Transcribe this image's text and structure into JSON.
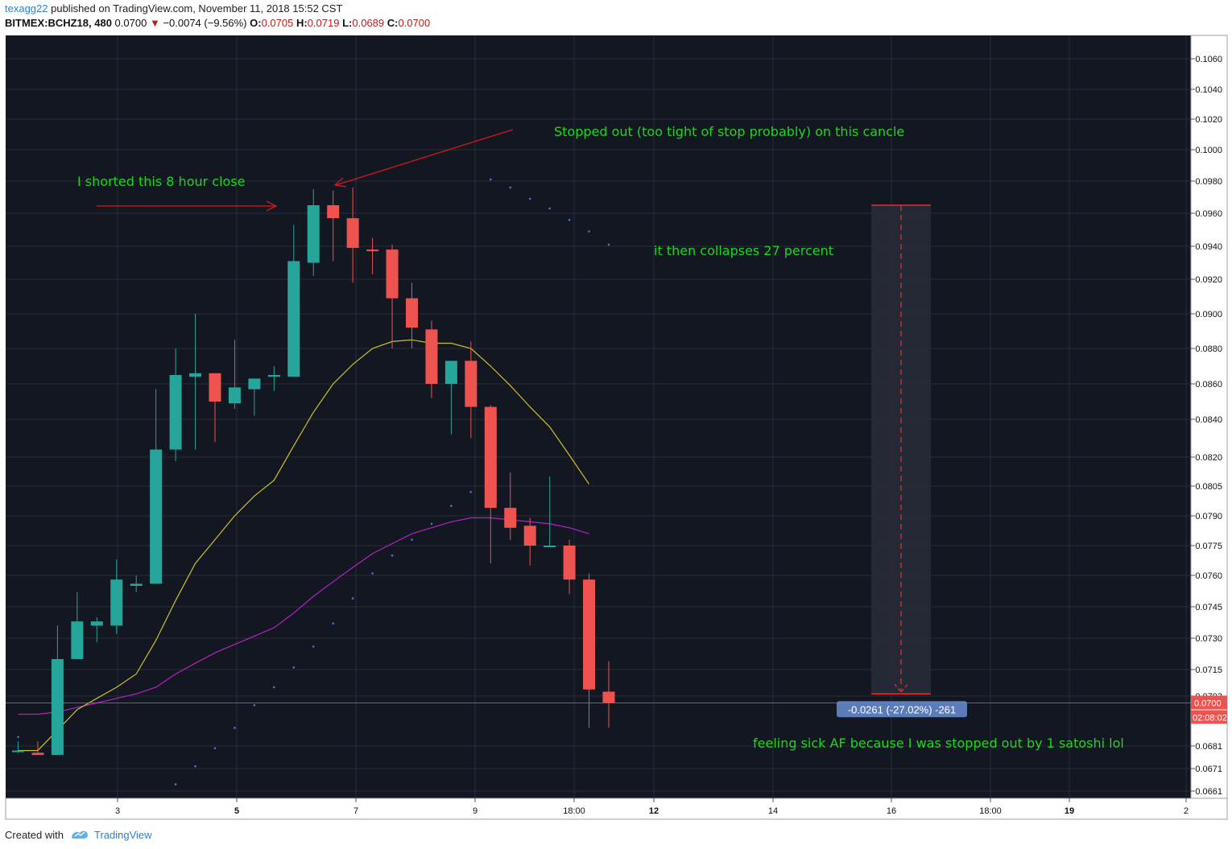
{
  "header": {
    "author": "texagg22",
    "published_text": " published on TradingView.com, November 11, 2018 15:52 CST",
    "symbol": "BITMEX:BCHZ18, 480",
    "last": "0.0700",
    "change": "−0.0074 (−9.56%)",
    "o_label": "O:",
    "o_val": "0.0705",
    "h_label": "H:",
    "h_val": "0.0719",
    "l_label": "L:",
    "l_val": "0.0689",
    "c_label": "C:",
    "c_val": "0.0700"
  },
  "footer": {
    "created_with": "Created with",
    "brand": "TradingView"
  },
  "colors": {
    "background": "#131722",
    "grid": "#2a2e39",
    "up": "#26a69a",
    "down": "#ef5350",
    "ema_fast": "#c9c22b",
    "ema_slow": "#b622c4",
    "dots": "#4c77c8",
    "annotation": "#1fd61f",
    "arrow": "#d1191d",
    "axis_text": "#111111"
  },
  "chart_data": {
    "type": "candlestick",
    "y_axis_ticks": [
      "0.0661",
      "0.0671",
      "0.0681",
      "0.0703",
      "0.0715",
      "0.0730",
      "0.0745",
      "0.0760",
      "0.0775",
      "0.0790",
      "0.0805",
      "0.0820",
      "0.0840",
      "0.0860",
      "0.0880",
      "0.0900",
      "0.0920",
      "0.0940",
      "0.0960",
      "0.0980",
      "0.1000",
      "0.1020",
      "0.1040",
      "0.1060"
    ],
    "x_axis_ticks": [
      {
        "label": "3",
        "bold": false
      },
      {
        "label": "5",
        "bold": true
      },
      {
        "label": "7",
        "bold": false
      },
      {
        "label": "9",
        "bold": false
      },
      {
        "label": "18:00",
        "bold": false
      },
      {
        "label": "12",
        "bold": true
      },
      {
        "label": "14",
        "bold": false
      },
      {
        "label": "16",
        "bold": false
      },
      {
        "label": "18:00",
        "bold": false
      },
      {
        "label": "19",
        "bold": true
      },
      {
        "label": "2",
        "bold": false
      }
    ],
    "candles": [
      {
        "o": 0.0679,
        "h": 0.0683,
        "l": 0.0678,
        "c": 0.0679
      },
      {
        "o": 0.0678,
        "h": 0.0683,
        "l": 0.0677,
        "c": 0.0677
      },
      {
        "o": 0.0677,
        "h": 0.0736,
        "l": 0.0677,
        "c": 0.072
      },
      {
        "o": 0.072,
        "h": 0.0752,
        "l": 0.072,
        "c": 0.0738
      },
      {
        "o": 0.0736,
        "h": 0.074,
        "l": 0.0728,
        "c": 0.0738
      },
      {
        "o": 0.0736,
        "h": 0.0768,
        "l": 0.0732,
        "c": 0.0758
      },
      {
        "o": 0.0755,
        "h": 0.076,
        "l": 0.0752,
        "c": 0.0756
      },
      {
        "o": 0.0756,
        "h": 0.0857,
        "l": 0.0756,
        "c": 0.0824
      },
      {
        "o": 0.0824,
        "h": 0.088,
        "l": 0.0818,
        "c": 0.0865
      },
      {
        "o": 0.0864,
        "h": 0.09,
        "l": 0.0824,
        "c": 0.0866
      },
      {
        "o": 0.0866,
        "h": 0.0866,
        "l": 0.0828,
        "c": 0.085
      },
      {
        "o": 0.0849,
        "h": 0.0885,
        "l": 0.0846,
        "c": 0.0858
      },
      {
        "o": 0.0857,
        "h": 0.0863,
        "l": 0.0842,
        "c": 0.0863
      },
      {
        "o": 0.0864,
        "h": 0.087,
        "l": 0.0856,
        "c": 0.0865
      },
      {
        "o": 0.0864,
        "h": 0.0953,
        "l": 0.0864,
        "c": 0.0931
      },
      {
        "o": 0.093,
        "h": 0.0975,
        "l": 0.0922,
        "c": 0.0965
      },
      {
        "o": 0.0965,
        "h": 0.0974,
        "l": 0.0931,
        "c": 0.0957
      },
      {
        "o": 0.0957,
        "h": 0.0976,
        "l": 0.0918,
        "c": 0.0939
      },
      {
        "o": 0.0938,
        "h": 0.0945,
        "l": 0.0923,
        "c": 0.0937
      },
      {
        "o": 0.0938,
        "h": 0.0941,
        "l": 0.088,
        "c": 0.0909
      },
      {
        "o": 0.0909,
        "h": 0.0918,
        "l": 0.088,
        "c": 0.0892
      },
      {
        "o": 0.0891,
        "h": 0.0896,
        "l": 0.0852,
        "c": 0.086
      },
      {
        "o": 0.086,
        "h": 0.0873,
        "l": 0.0832,
        "c": 0.0873
      },
      {
        "o": 0.0873,
        "h": 0.0884,
        "l": 0.083,
        "c": 0.0847
      },
      {
        "o": 0.0847,
        "h": 0.0848,
        "l": 0.0766,
        "c": 0.0794
      },
      {
        "o": 0.0794,
        "h": 0.0812,
        "l": 0.0778,
        "c": 0.0784
      },
      {
        "o": 0.0785,
        "h": 0.0789,
        "l": 0.0765,
        "c": 0.0775
      },
      {
        "o": 0.0775,
        "h": 0.081,
        "l": 0.0775,
        "c": 0.0775
      },
      {
        "o": 0.0775,
        "h": 0.0778,
        "l": 0.0751,
        "c": 0.0758
      },
      {
        "o": 0.0758,
        "h": 0.0761,
        "l": 0.0689,
        "c": 0.0706
      },
      {
        "o": 0.0705,
        "h": 0.0719,
        "l": 0.0689,
        "c": 0.07
      }
    ],
    "ema_fast": [
      {
        "i": 0,
        "v": 0.0679
      },
      {
        "i": 1,
        "v": 0.0679
      },
      {
        "i": 2,
        "v": 0.0688
      },
      {
        "i": 3,
        "v": 0.0697
      },
      {
        "i": 4,
        "v": 0.0702
      },
      {
        "i": 5,
        "v": 0.0707
      },
      {
        "i": 6,
        "v": 0.0713
      },
      {
        "i": 7,
        "v": 0.0729
      },
      {
        "i": 8,
        "v": 0.0748
      },
      {
        "i": 9,
        "v": 0.0766
      },
      {
        "i": 10,
        "v": 0.0778
      },
      {
        "i": 11,
        "v": 0.079
      },
      {
        "i": 12,
        "v": 0.08
      },
      {
        "i": 13,
        "v": 0.0808
      },
      {
        "i": 14,
        "v": 0.0826
      },
      {
        "i": 15,
        "v": 0.0844
      },
      {
        "i": 16,
        "v": 0.086
      },
      {
        "i": 17,
        "v": 0.0871
      },
      {
        "i": 18,
        "v": 0.088
      },
      {
        "i": 19,
        "v": 0.0884
      },
      {
        "i": 20,
        "v": 0.0885
      },
      {
        "i": 21,
        "v": 0.0883
      },
      {
        "i": 22,
        "v": 0.0883
      },
      {
        "i": 23,
        "v": 0.088
      },
      {
        "i": 24,
        "v": 0.087
      },
      {
        "i": 25,
        "v": 0.0859
      },
      {
        "i": 26,
        "v": 0.0847
      },
      {
        "i": 27,
        "v": 0.0836
      },
      {
        "i": 28,
        "v": 0.0821
      },
      {
        "i": 29,
        "v": 0.0806
      }
    ],
    "ema_slow": [
      {
        "i": 0,
        "v": 0.0695
      },
      {
        "i": 1,
        "v": 0.0695
      },
      {
        "i": 2,
        "v": 0.0696
      },
      {
        "i": 3,
        "v": 0.0698
      },
      {
        "i": 4,
        "v": 0.07
      },
      {
        "i": 5,
        "v": 0.0702
      },
      {
        "i": 6,
        "v": 0.0704
      },
      {
        "i": 7,
        "v": 0.0707
      },
      {
        "i": 8,
        "v": 0.0713
      },
      {
        "i": 9,
        "v": 0.0718
      },
      {
        "i": 10,
        "v": 0.0723
      },
      {
        "i": 11,
        "v": 0.0727
      },
      {
        "i": 12,
        "v": 0.0731
      },
      {
        "i": 13,
        "v": 0.0735
      },
      {
        "i": 14,
        "v": 0.0742
      },
      {
        "i": 15,
        "v": 0.075
      },
      {
        "i": 16,
        "v": 0.0757
      },
      {
        "i": 17,
        "v": 0.0764
      },
      {
        "i": 18,
        "v": 0.0771
      },
      {
        "i": 19,
        "v": 0.0776
      },
      {
        "i": 20,
        "v": 0.0781
      },
      {
        "i": 21,
        "v": 0.0784
      },
      {
        "i": 22,
        "v": 0.0787
      },
      {
        "i": 23,
        "v": 0.0789
      },
      {
        "i": 24,
        "v": 0.0789
      },
      {
        "i": 25,
        "v": 0.0788
      },
      {
        "i": 26,
        "v": 0.0787
      },
      {
        "i": 27,
        "v": 0.0786
      },
      {
        "i": 28,
        "v": 0.0784
      },
      {
        "i": 29,
        "v": 0.0781
      }
    ],
    "psar": [
      {
        "i": 0,
        "v": 0.0685
      },
      {
        "i": 8,
        "v": 0.0664
      },
      {
        "i": 9,
        "v": 0.0672
      },
      {
        "i": 10,
        "v": 0.068
      },
      {
        "i": 11,
        "v": 0.0689
      },
      {
        "i": 12,
        "v": 0.0699
      },
      {
        "i": 13,
        "v": 0.0707
      },
      {
        "i": 14,
        "v": 0.0716
      },
      {
        "i": 15,
        "v": 0.0726
      },
      {
        "i": 16,
        "v": 0.0737
      },
      {
        "i": 17,
        "v": 0.0749
      },
      {
        "i": 18,
        "v": 0.0761
      },
      {
        "i": 19,
        "v": 0.077
      },
      {
        "i": 20,
        "v": 0.0778
      },
      {
        "i": 21,
        "v": 0.0786
      },
      {
        "i": 22,
        "v": 0.0795
      },
      {
        "i": 23,
        "v": 0.0802
      },
      {
        "i": 24,
        "v": 0.0981
      },
      {
        "i": 25,
        "v": 0.0976
      },
      {
        "i": 26,
        "v": 0.0969
      },
      {
        "i": 27,
        "v": 0.0963
      },
      {
        "i": 28,
        "v": 0.0956
      },
      {
        "i": 29,
        "v": 0.0949
      },
      {
        "i": 30,
        "v": 0.0941
      }
    ],
    "last_price_label": "0.0700",
    "countdown_label": "02:08:02",
    "measure": {
      "label": "-0.0261 (-27.02%) -261",
      "top": 0.0965,
      "bottom": 0.0704
    },
    "annotations": [
      {
        "text": "Stopped out (too tight of stop probably) on this cancle"
      },
      {
        "text": "I shorted this 8 hour close"
      },
      {
        "text": "it then collapses 27 percent"
      },
      {
        "text": "feeling  sick AF because I was stopped out by 1 satoshi lol"
      }
    ]
  }
}
